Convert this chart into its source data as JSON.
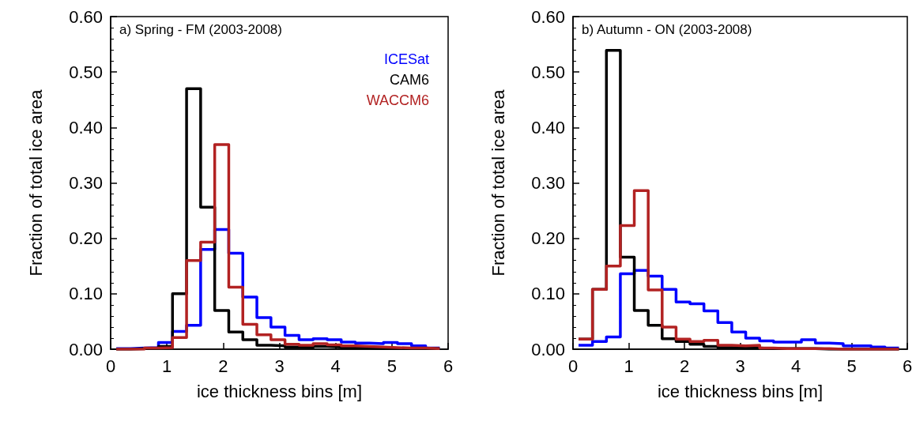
{
  "chart_data": [
    {
      "type": "histogram",
      "title": "a) Spring - FM (2003-2008)",
      "xlabel": "ice thickness bins [m]",
      "ylabel": "Fraction of total ice area",
      "legend": "top right",
      "bins": [
        0.1,
        0.35,
        0.6,
        0.85,
        1.1,
        1.35,
        1.6,
        1.85,
        2.1,
        2.35,
        2.6,
        2.85,
        3.1,
        3.35,
        3.6,
        3.85,
        4.1,
        4.35,
        4.6,
        4.85,
        5.1,
        5.35,
        5.6,
        5.85
      ],
      "xlim": [
        0,
        6
      ],
      "xticks": [
        0,
        1,
        2,
        3,
        4,
        5,
        6
      ],
      "ylim": [
        0,
        0.6
      ],
      "yticks": [
        {
          "value": 0,
          "label": "0.00"
        },
        {
          "value": 0.1,
          "label": "0.10"
        },
        {
          "value": 0.2,
          "label": "0.20"
        },
        {
          "value": 0.3,
          "label": "0.30"
        },
        {
          "value": 0.4,
          "label": "0.40"
        },
        {
          "value": 0.5,
          "label": "0.50"
        },
        {
          "value": 0.6,
          "label": "0.60"
        }
      ],
      "series": [
        {
          "name": "ICESat",
          "color": "#0000ff",
          "values": [
            0.001,
            0.002,
            0.003,
            0.012,
            0.032,
            0.043,
            0.18,
            0.216,
            0.173,
            0.094,
            0.057,
            0.04,
            0.025,
            0.017,
            0.019,
            0.017,
            0.013,
            0.011,
            0.01,
            0.012,
            0.01,
            0.006,
            0.002
          ]
        },
        {
          "name": "CAM6",
          "color": "#000000",
          "values": [
            0,
            0.001,
            0.002,
            0.005,
            0.1,
            0.47,
            0.256,
            0.07,
            0.031,
            0.017,
            0.007,
            0.006,
            0.004,
            0.003,
            0.005,
            0.004,
            0.002,
            0.002,
            0.001,
            0.001,
            0.001,
            0.001,
            0.001
          ]
        },
        {
          "name": "WACCM6",
          "color": "#b22222",
          "values": [
            0,
            0,
            0.002,
            0.003,
            0.021,
            0.16,
            0.193,
            0.369,
            0.112,
            0.045,
            0.026,
            0.017,
            0.009,
            0.007,
            0.01,
            0.008,
            0.006,
            0.005,
            0.004,
            0.003,
            0.002,
            0.002,
            0.001
          ]
        }
      ]
    },
    {
      "type": "histogram",
      "title": "b) Autumn - ON (2003-2008)",
      "xlabel": "ice thickness bins [m]",
      "ylabel": "Fraction of total ice area",
      "bins": [
        0.1,
        0.35,
        0.6,
        0.85,
        1.1,
        1.35,
        1.6,
        1.85,
        2.1,
        2.35,
        2.6,
        2.85,
        3.1,
        3.35,
        3.6,
        3.85,
        4.1,
        4.35,
        4.6,
        4.85,
        5.1,
        5.35,
        5.6,
        5.85
      ],
      "xlim": [
        0,
        6
      ],
      "xticks": [
        0,
        1,
        2,
        3,
        4,
        5,
        6
      ],
      "ylim": [
        0,
        0.6
      ],
      "yticks": [
        {
          "value": 0,
          "label": "0.00"
        },
        {
          "value": 0.1,
          "label": "0.10"
        },
        {
          "value": 0.2,
          "label": "0.20"
        },
        {
          "value": 0.3,
          "label": "0.30"
        },
        {
          "value": 0.4,
          "label": "0.40"
        },
        {
          "value": 0.5,
          "label": "0.50"
        },
        {
          "value": 0.6,
          "label": "0.60"
        }
      ],
      "series": [
        {
          "color": "#0000ff",
          "values": [
            0.007,
            0.014,
            0.022,
            0.136,
            0.142,
            0.132,
            0.108,
            0.085,
            0.082,
            0.069,
            0.048,
            0.031,
            0.02,
            0.015,
            0.013,
            0.013,
            0.017,
            0.011,
            0.01,
            0.006,
            0.006,
            0.004,
            0.002
          ]
        },
        {
          "color": "#000000",
          "values": [
            0.018,
            0.108,
            0.539,
            0.166,
            0.07,
            0.043,
            0.019,
            0.014,
            0.009,
            0.005,
            0.003,
            0.002,
            0.002,
            0.001,
            0.001,
            0.001,
            0.001,
            0,
            0,
            0,
            0,
            0,
            0
          ]
        },
        {
          "color": "#b22222",
          "values": [
            0.018,
            0.108,
            0.15,
            0.223,
            0.286,
            0.107,
            0.04,
            0.018,
            0.014,
            0.016,
            0.007,
            0.006,
            0.007,
            0.002,
            0.001,
            0.001,
            0.001,
            0.001,
            0,
            0,
            0,
            0,
            0
          ]
        }
      ]
    }
  ]
}
